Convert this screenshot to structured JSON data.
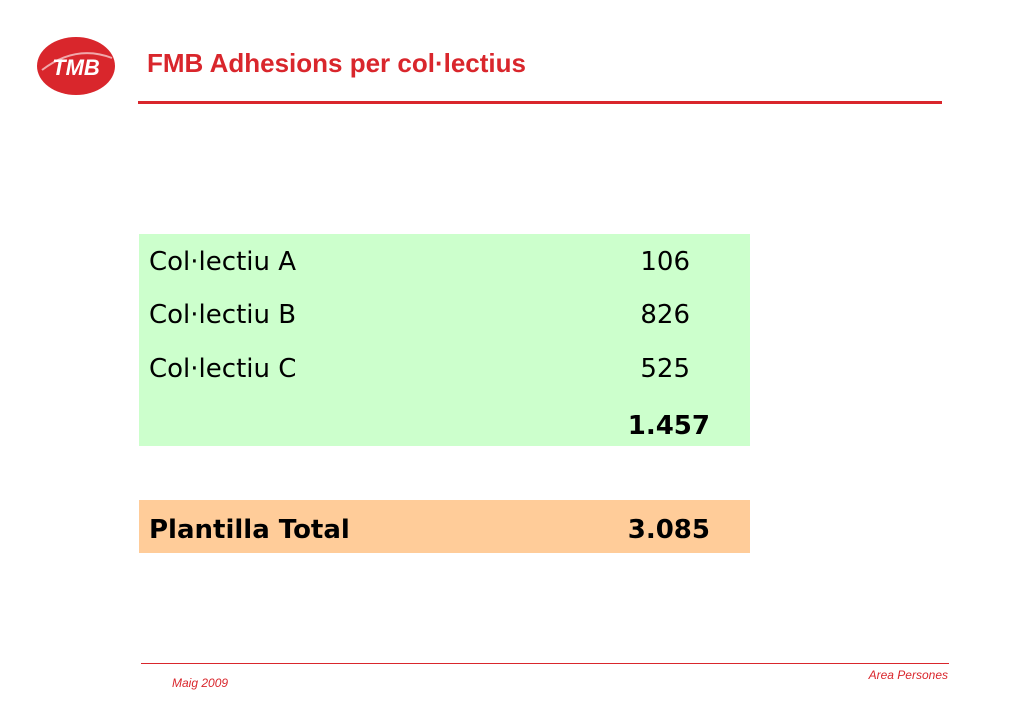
{
  "header": {
    "logo_text": "TMB",
    "title": "FMB Adhesions per col·lectius"
  },
  "colors": {
    "brand_red": "#d9262c",
    "table_green": "#ccffcc",
    "table_orange": "#ffcc99"
  },
  "table": {
    "rows": [
      {
        "label": "Col·lectiu A",
        "value": "106"
      },
      {
        "label": "Col·lectiu B",
        "value": "826"
      },
      {
        "label": "Col·lectiu C",
        "value": "525"
      }
    ],
    "subtotal": "1.457",
    "total": {
      "label": "Plantilla Total",
      "value": "3.085"
    }
  },
  "footer": {
    "date": "Maig 2009",
    "department": "Area Persones"
  }
}
